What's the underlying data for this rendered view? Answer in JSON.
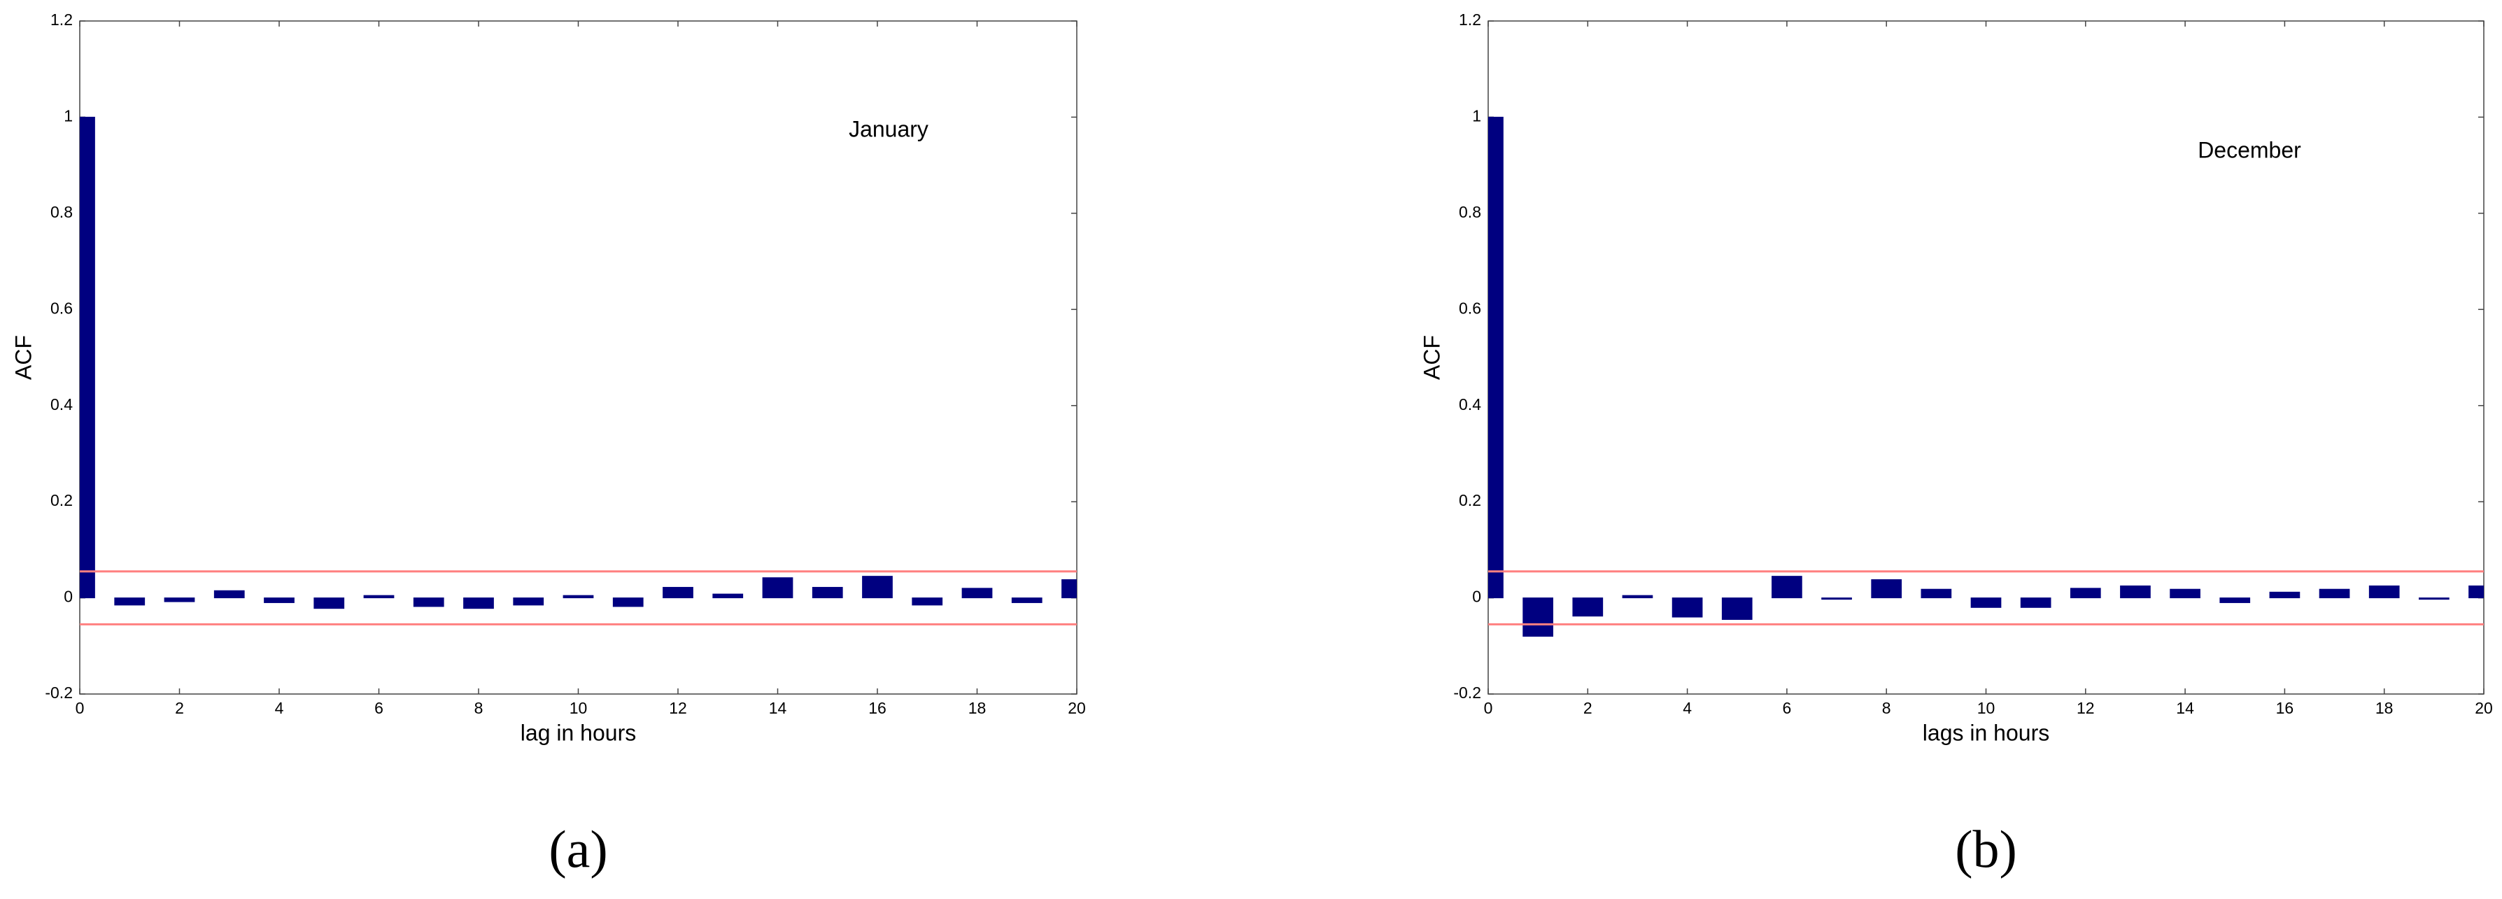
{
  "chart_data": [
    {
      "type": "bar",
      "panel": "(a)",
      "annotation": "January",
      "xlabel": "lag in hours",
      "ylabel": "ACF",
      "x": [
        0,
        1,
        2,
        3,
        4,
        5,
        6,
        7,
        8,
        9,
        10,
        11,
        12,
        13,
        14,
        15,
        16,
        17,
        18,
        19,
        20
      ],
      "values": [
        1,
        -0.015,
        -0.008,
        0.015,
        -0.01,
        -0.022,
        0.005,
        -0.018,
        -0.022,
        -0.015,
        0.005,
        -0.018,
        0.022,
        0.008,
        0.042,
        0.022,
        0.045,
        -0.015,
        0.02,
        -0.01,
        0.038
      ],
      "color": "#000080",
      "bounds": [
        -0.055,
        0.055
      ],
      "bounds_color": "#ff8080",
      "xlim": [
        0,
        20
      ],
      "ylim": [
        -0.2,
        1.2
      ],
      "xticks": [
        0,
        2,
        4,
        6,
        8,
        10,
        12,
        14,
        16,
        18,
        20
      ],
      "yticks": [
        -0.2,
        0,
        0.2,
        0.4,
        0.6,
        0.8,
        1,
        1.2
      ]
    },
    {
      "type": "bar",
      "panel": "(b)",
      "annotation": "December",
      "xlabel": "lags in hours",
      "ylabel": "ACF",
      "x": [
        0,
        1,
        2,
        3,
        4,
        5,
        6,
        7,
        8,
        9,
        10,
        11,
        12,
        13,
        14,
        15,
        16,
        17,
        18,
        19,
        20
      ],
      "values": [
        1,
        -0.08,
        -0.038,
        0.005,
        -0.04,
        -0.045,
        0.045,
        -0.003,
        0.038,
        0.018,
        -0.02,
        -0.02,
        0.02,
        0.025,
        0.018,
        -0.01,
        0.012,
        0.018,
        0.025,
        -0.003,
        0.025
      ],
      "color": "#000080",
      "bounds": [
        -0.055,
        0.055
      ],
      "bounds_color": "#ff8080",
      "xlim": [
        0,
        20
      ],
      "ylim": [
        -0.2,
        1.2
      ],
      "xticks": [
        0,
        2,
        4,
        6,
        8,
        10,
        12,
        14,
        16,
        18,
        20
      ],
      "yticks": [
        -0.2,
        0,
        0.2,
        0.4,
        0.6,
        0.8,
        1,
        1.2
      ]
    }
  ]
}
